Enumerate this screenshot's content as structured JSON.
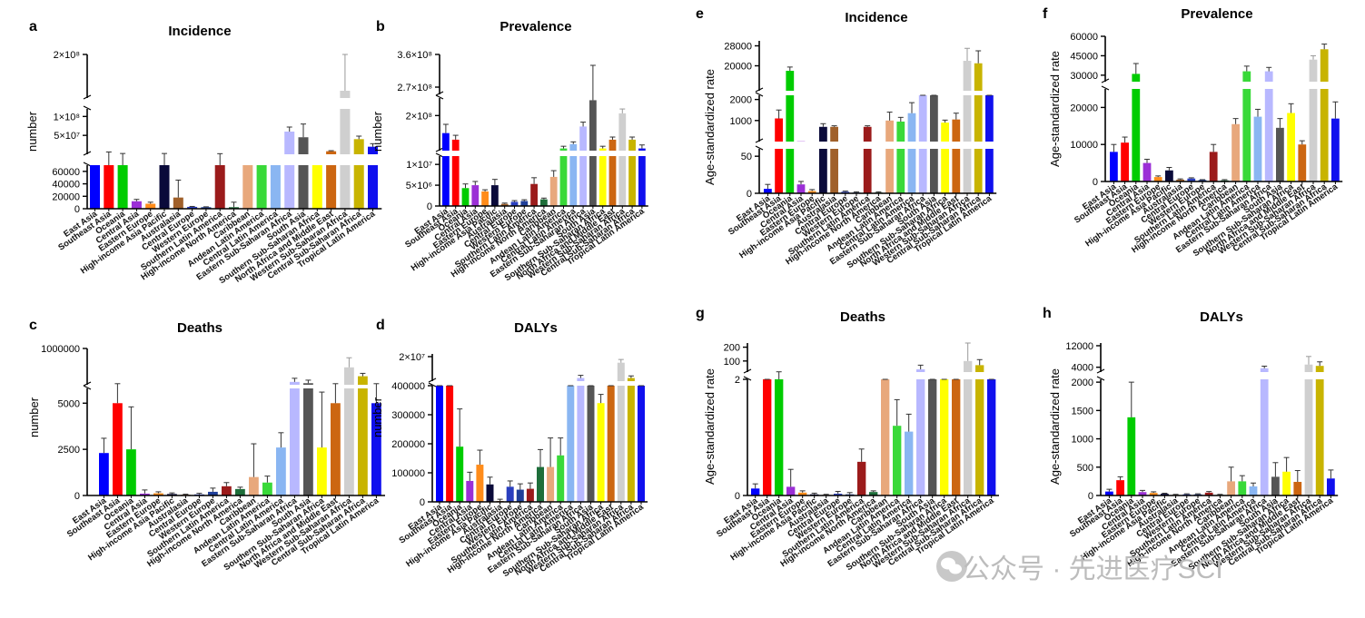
{
  "categories": [
    "East Asia",
    "Southeast Asia",
    "Oceania",
    "Central Asia",
    "Eastern Europe",
    "High-income Asia Pacific",
    "Australasia",
    "Central Europe",
    "Western Europe",
    "Southern Latin America",
    "High-income North America",
    "Caribbean",
    "Andean Latin America",
    "Central Latin America",
    "Eastern Sub-Saharan Africa",
    "South Asia",
    "Southern Sub-Saharan Africa",
    "North Africa and Middle East",
    "Western Sub-Saharan Africa",
    "Central Sub-Saharan Africa",
    "Tropical Latin America"
  ],
  "colors": [
    "#0000ff",
    "#ff0000",
    "#00cc00",
    "#9b2fd6",
    "#ff8c1a",
    "#0a0a3a",
    "#a0602a",
    "#2a3fbf",
    "#1f3f99",
    "#9b1b1b",
    "#1e6e3a",
    "#e8a87c",
    "#39d939",
    "#8ab6f2",
    "#b8b8ff",
    "#555555",
    "#ffff00",
    "#cc6611",
    "#cfcfcf",
    "#c8b400",
    "#1010ee"
  ],
  "watermark": {
    "text": "公众号 · 先进医疗SCI",
    "icon": "wechat-icon"
  },
  "chart_data": [
    {
      "panel": "a",
      "type": "bar",
      "title": "Incidence",
      "ylabel": "number",
      "yticks_labels": [
        "2×10⁸",
        "1×10⁸",
        "5×10⁷",
        "60000",
        "40000",
        "20000",
        "0"
      ],
      "values": [
        70000,
        70000,
        70000,
        12000,
        8000,
        70000,
        18000,
        3000,
        2500,
        70000,
        2500,
        70000,
        70000,
        70000,
        60000000,
        45000000,
        70000,
        8000000,
        150000000,
        40000000,
        20000000
      ],
      "errors": [
        0,
        6000000,
        2000000,
        3000,
        2500,
        2000000,
        28000,
        700,
        600,
        1500000,
        8000,
        0,
        0,
        0,
        12000000,
        35000000,
        0,
        1500000,
        60000000,
        8000000,
        8000000
      ]
    },
    {
      "panel": "b",
      "type": "bar",
      "title": "Prevalence",
      "ylabel": "number",
      "yticks_labels": [
        "3.6×10⁸",
        "2.7×10⁸",
        "2×10⁸",
        "1×10⁷",
        "5×10⁶",
        "0"
      ],
      "values": [
        160000000,
        145000000,
        4300000,
        5000000,
        3500000,
        5000000,
        500000,
        1000000,
        1200000,
        5300000,
        1600000,
        7000000,
        125000000,
        135000000,
        175000000,
        235000000,
        125000000,
        145000000,
        205000000,
        145000000,
        125000000
      ],
      "errors": [
        20000000,
        10000000,
        1000000,
        900000,
        400000,
        1400000,
        200000,
        300000,
        300000,
        1500000,
        300000,
        1500000,
        5000000,
        5000000,
        10000000,
        95000000,
        5000000,
        6000000,
        10000000,
        6000000,
        8000000
      ]
    },
    {
      "panel": "c",
      "type": "bar",
      "title": "Deaths",
      "ylabel": "number",
      "yticks_labels": [
        "1000000",
        "5000",
        "2500",
        "0"
      ],
      "values": [
        2300,
        5000,
        2500,
        100,
        120,
        80,
        40,
        60,
        200,
        500,
        350,
        1000,
        700,
        2600,
        9000,
        7500,
        2600,
        5000,
        70000,
        20000,
        5000
      ],
      "errors": [
        800,
        2000,
        2300,
        200,
        80,
        60,
        30,
        60,
        200,
        200,
        100,
        1800,
        350,
        800,
        6000,
        4000,
        3000,
        2000,
        200000,
        10000,
        2000
      ],
      "broken_axis": true
    },
    {
      "panel": "d",
      "type": "bar",
      "title": "DALYs",
      "ylabel": "number",
      "yticks_labels": [
        "2×10⁷",
        "400000",
        "300000",
        "200000",
        "100000",
        "0"
      ],
      "values": [
        400000,
        400000,
        190000,
        72000,
        128000,
        60000,
        3000,
        52000,
        42000,
        45000,
        120000,
        120000,
        160000,
        400000,
        800000,
        400000,
        340000,
        400000,
        8000000,
        800000,
        400000
      ],
      "errors": [
        80000,
        80000,
        130000,
        30000,
        50000,
        25000,
        6000,
        20000,
        20000,
        20000,
        60000,
        100000,
        60000,
        80000,
        400000,
        80000,
        30000,
        80000,
        5000000,
        300000,
        80000
      ]
    },
    {
      "panel": "e",
      "type": "bar",
      "title": "Incidence",
      "ylabel": "Age-standardized rate",
      "yticks_labels": [
        "28000",
        "20000",
        "2000",
        "1000",
        "50",
        "0"
      ],
      "values": [
        6,
        1100,
        18000,
        12,
        3,
        700,
        700,
        2,
        1,
        700,
        1,
        1000,
        950,
        1350,
        5000,
        3000,
        900,
        1050,
        22000,
        21000,
        4500
      ],
      "errors": [
        6,
        400,
        1500,
        4,
        2,
        150,
        50,
        1,
        1,
        50,
        1,
        400,
        200,
        500,
        600,
        300,
        120,
        300,
        5000,
        5000,
        3000
      ]
    },
    {
      "panel": "f",
      "type": "bar",
      "title": "Prevalence",
      "ylabel": "Age-standardized rate",
      "yticks_labels": [
        "60000",
        "45000",
        "30000",
        "20000",
        "10000",
        "0"
      ],
      "values": [
        8000,
        10500,
        31000,
        5000,
        1200,
        3000,
        500,
        800,
        400,
        8000,
        300,
        15500,
        33000,
        17500,
        33000,
        14500,
        18500,
        10000,
        42000,
        50000,
        17000
      ],
      "errors": [
        2000,
        1500,
        8000,
        1000,
        300,
        800,
        200,
        200,
        100,
        2000,
        200,
        1500,
        4000,
        2000,
        3000,
        2500,
        2500,
        1000,
        3000,
        4000,
        4500
      ]
    },
    {
      "panel": "g",
      "type": "bar",
      "title": "Deaths",
      "ylabel": "Age-standardized rate",
      "yticks_labels": [
        "200",
        "100",
        "2",
        "0"
      ],
      "values": [
        0.12,
        2,
        2,
        0.15,
        0.05,
        0.02,
        0.01,
        0.03,
        0.02,
        0.58,
        0.06,
        2,
        1.2,
        1.1,
        40,
        2,
        2,
        2,
        100,
        70,
        2
      ],
      "errors": [
        0.08,
        0.2,
        20,
        0.3,
        0.03,
        0.02,
        0.01,
        0.04,
        0.03,
        0.22,
        0.02,
        10,
        0.45,
        0.3,
        30,
        0.5,
        0.5,
        0.5,
        150,
        40,
        0.2
      ],
      "broken_axis": true
    },
    {
      "panel": "h",
      "type": "bar",
      "title": "DALYs",
      "ylabel": "Age-standardized rate",
      "yticks_labels": [
        "12000",
        "4000",
        "2000",
        "1500",
        "1000",
        "500",
        "0"
      ],
      "values": [
        70,
        270,
        1380,
        60,
        45,
        30,
        10,
        20,
        20,
        50,
        10,
        250,
        250,
        160,
        3600,
        330,
        420,
        240,
        5000,
        4500,
        300
      ],
      "errors": [
        40,
        60,
        620,
        30,
        20,
        10,
        10,
        10,
        10,
        20,
        10,
        250,
        100,
        60,
        800,
        250,
        250,
        200,
        3000,
        1500,
        150
      ]
    }
  ]
}
